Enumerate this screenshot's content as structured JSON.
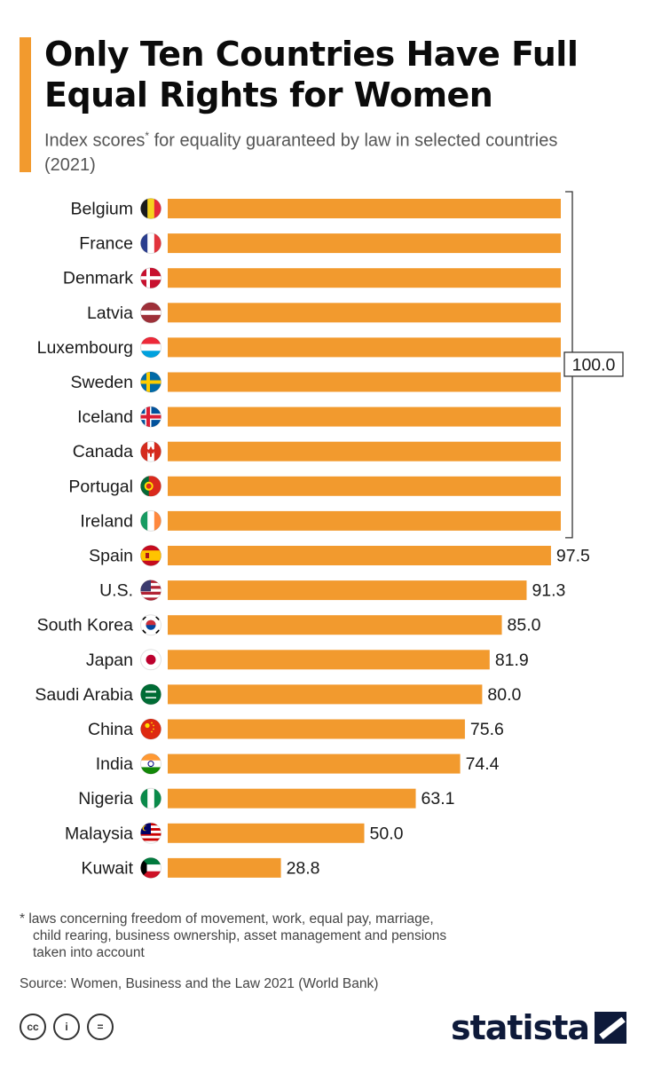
{
  "header": {
    "title": "Only Ten Countries Have Full Equal Rights for Women",
    "subtitle_a": "Index scores",
    "subtitle_star": "*",
    "subtitle_b": " for equality guaranteed by law in selected countries (2021)"
  },
  "chart_data": {
    "type": "bar",
    "orientation": "horizontal",
    "title": "Only Ten Countries Have Full Equal Rights for Women",
    "subtitle": "Index scores* for equality guaranteed by law in selected countries (2021)",
    "xlim": [
      0,
      100
    ],
    "grid": false,
    "bar_color": "#f29a2e",
    "categories": [
      "Belgium",
      "France",
      "Denmark",
      "Latvia",
      "Luxembourg",
      "Sweden",
      "Iceland",
      "Canada",
      "Portugal",
      "Ireland",
      "Spain",
      "U.S.",
      "South Korea",
      "Japan",
      "Saudi Arabia",
      "China",
      "India",
      "Nigeria",
      "Malaysia",
      "Kuwait"
    ],
    "values": [
      100.0,
      100.0,
      100.0,
      100.0,
      100.0,
      100.0,
      100.0,
      100.0,
      100.0,
      100.0,
      97.5,
      91.3,
      85.0,
      81.9,
      80.0,
      75.6,
      74.4,
      63.1,
      50.0,
      28.8
    ],
    "value_labels": [
      "",
      "",
      "",
      "",
      "",
      "",
      "",
      "",
      "",
      "",
      "97.5",
      "91.3",
      "85.0",
      "81.9",
      "80.0",
      "75.6",
      "74.4",
      "63.1",
      "50.0",
      "28.8"
    ],
    "group_annotation": {
      "label": "100.0",
      "first_index": 0,
      "last_index": 9
    },
    "flag_icons": [
      "belgium-flag-icon",
      "france-flag-icon",
      "denmark-flag-icon",
      "latvia-flag-icon",
      "luxembourg-flag-icon",
      "sweden-flag-icon",
      "iceland-flag-icon",
      "canada-flag-icon",
      "portugal-flag-icon",
      "ireland-flag-icon",
      "spain-flag-icon",
      "us-flag-icon",
      "south-korea-flag-icon",
      "japan-flag-icon",
      "saudi-arabia-flag-icon",
      "china-flag-icon",
      "india-flag-icon",
      "nigeria-flag-icon",
      "malaysia-flag-icon",
      "kuwait-flag-icon"
    ]
  },
  "footer": {
    "footnote_line1": "* laws concerning freedom of movement, work, equal pay, marriage,",
    "footnote_line2": "child rearing, business ownership, asset management and pensions",
    "footnote_line3": "taken into account",
    "source": "Source: Women, Business and the Law 2021 (World Bank)",
    "brand": "statista",
    "license_icons": [
      "cc-icon",
      "attribution-icon",
      "no-derivatives-icon"
    ],
    "license_glyphs": [
      "cc",
      "i",
      "="
    ]
  }
}
